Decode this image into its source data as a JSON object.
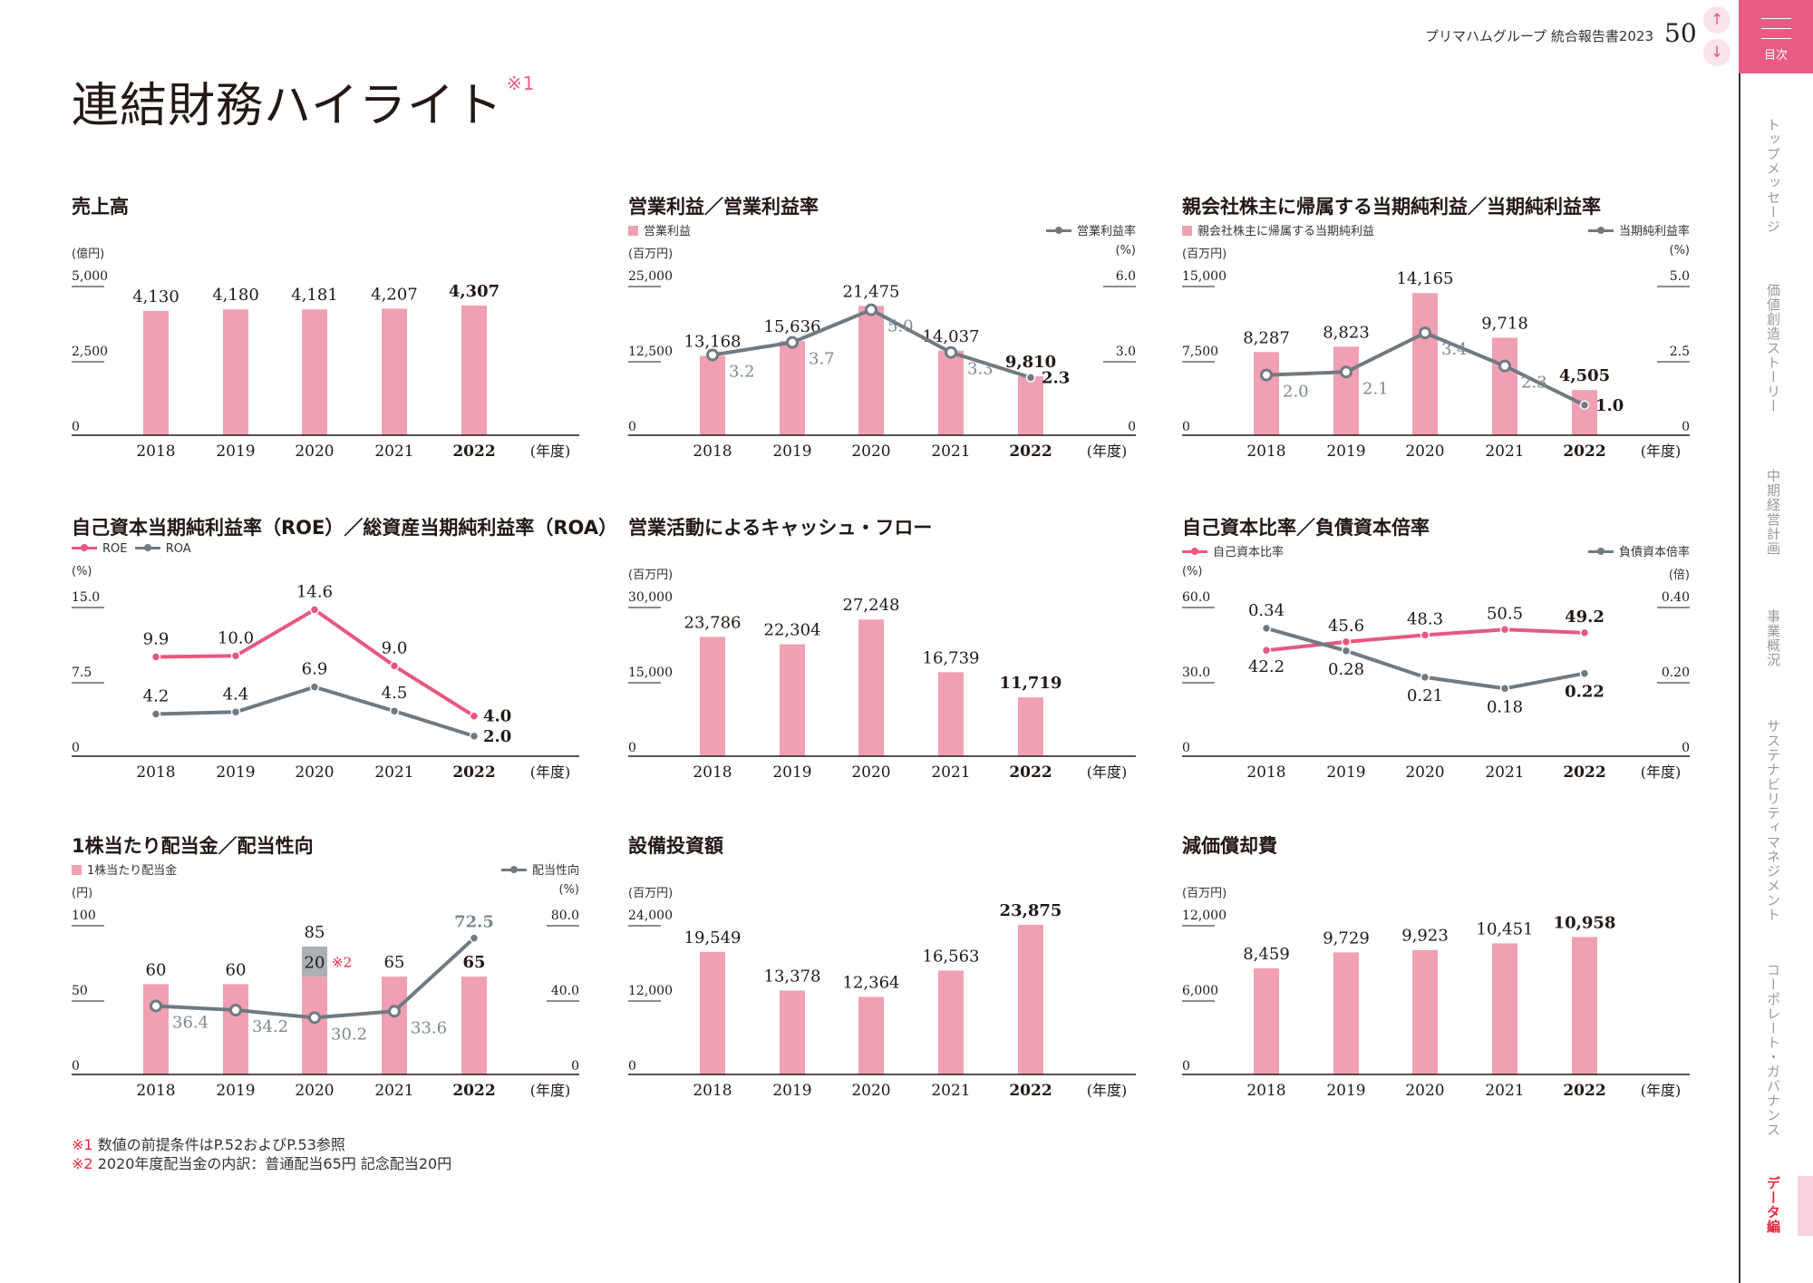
{
  "header": {
    "report_title": "プリマハムグループ 統合報告書2023",
    "page_number": "50",
    "up_icon": "arrow-up-icon",
    "down_icon": "arrow-down-icon",
    "toc_label": "目次"
  },
  "sidebar": {
    "items": [
      {
        "label": "トップメッセージ",
        "active": false
      },
      {
        "label": "価値創造ストーリー",
        "active": false
      },
      {
        "label": "中期経営計画",
        "active": false
      },
      {
        "label": "事業概況",
        "active": false
      },
      {
        "label": "サステナビリティマネジメント",
        "active": false
      },
      {
        "label": "コーポレート・ガバナンス",
        "active": false
      },
      {
        "label": "データ編",
        "active": true
      }
    ]
  },
  "page": {
    "title": "連結財務ハイライト",
    "title_note": "※1"
  },
  "colors": {
    "bar": "#f0a0b2",
    "line_gray": "#6f7a82",
    "line_pink": "#e8577f",
    "stack_gray": "#aab0b4",
    "accent": "#e85c84"
  },
  "footnotes": [
    {
      "mark": "※1",
      "text": "数値の前提条件はP.52およびP.53参照"
    },
    {
      "mark": "※2",
      "text": "2020年度配当金の内訳：普通配当65円 記念配当20円"
    }
  ],
  "chart_data": [
    {
      "type": "bar",
      "title": "売上高",
      "unit_left": "(億円)",
      "x_unit": "(年度)",
      "categories": [
        "2018",
        "2019",
        "2020",
        "2021",
        "2022"
      ],
      "left_axis": {
        "min": 0,
        "max": 5000,
        "ticks": [
          {
            "value": 0,
            "label": "0"
          },
          {
            "value": 2500,
            "label": "2,500"
          },
          {
            "value": 5000,
            "label": "5,000"
          }
        ]
      },
      "series": [
        {
          "kind": "bar",
          "values": [
            4130,
            4180,
            4181,
            4207,
            4307
          ],
          "labels": [
            "4,130",
            "4,180",
            "4,181",
            "4,207",
            "4,307"
          ]
        }
      ]
    },
    {
      "type": "bar+line",
      "title": "営業利益／営業利益率",
      "legend_left": "営業利益",
      "legend_right": "営業利益率",
      "unit_left": "(百万円)",
      "unit_right": "(%)",
      "x_unit": "(年度)",
      "categories": [
        "2018",
        "2019",
        "2020",
        "2021",
        "2022"
      ],
      "left_axis": {
        "min": 0,
        "max": 25000,
        "ticks": [
          {
            "value": 0,
            "label": "0"
          },
          {
            "value": 12500,
            "label": "12,500"
          },
          {
            "value": 25000,
            "label": "25,000"
          }
        ]
      },
      "right_axis": {
        "min": 0,
        "max": 6,
        "ticks": [
          {
            "value": 0,
            "label": "0"
          },
          {
            "value": 3,
            "label": "3.0"
          },
          {
            "value": 6,
            "label": "6.0"
          }
        ]
      },
      "series": [
        {
          "name": "営業利益",
          "kind": "bar",
          "values": [
            13168,
            15636,
            21475,
            14037,
            9810
          ],
          "labels": [
            "13,168",
            "15,636",
            "21,475",
            "14,037",
            "9,810"
          ]
        },
        {
          "name": "営業利益率",
          "kind": "line",
          "axis": "right",
          "color": "#6f7a82",
          "values": [
            3.2,
            3.7,
            5.0,
            3.3,
            2.3
          ],
          "labels": [
            "3.2",
            "3.7",
            "5.0",
            "3.3",
            "2.3"
          ]
        }
      ]
    },
    {
      "type": "bar+line",
      "title": "親会社株主に帰属する当期純利益／当期純利益率",
      "legend_left": "親会社株主に帰属する当期純利益",
      "legend_right": "当期純利益率",
      "unit_left": "(百万円)",
      "unit_right": "(%)",
      "x_unit": "(年度)",
      "categories": [
        "2018",
        "2019",
        "2020",
        "2021",
        "2022"
      ],
      "left_axis": {
        "min": 0,
        "max": 15000,
        "ticks": [
          {
            "value": 0,
            "label": "0"
          },
          {
            "value": 7500,
            "label": "7,500"
          },
          {
            "value": 15000,
            "label": "15,000"
          }
        ]
      },
      "right_axis": {
        "min": 0,
        "max": 5,
        "ticks": [
          {
            "value": 0,
            "label": "0"
          },
          {
            "value": 2.5,
            "label": "2.5"
          },
          {
            "value": 5,
            "label": "5.0"
          }
        ]
      },
      "series": [
        {
          "name": "親会社株主に帰属する当期純利益",
          "kind": "bar",
          "values": [
            8287,
            8823,
            14165,
            9718,
            4505
          ],
          "labels": [
            "8,287",
            "8,823",
            "14,165",
            "9,718",
            "4,505"
          ]
        },
        {
          "name": "当期純利益率",
          "kind": "line",
          "axis": "right",
          "color": "#6f7a82",
          "values": [
            2.0,
            2.1,
            3.4,
            2.3,
            1.0
          ],
          "labels": [
            "2.0",
            "2.1",
            "3.4",
            "2.3",
            "1.0"
          ]
        }
      ]
    },
    {
      "type": "line",
      "title": "自己資本当期純利益率（ROE）／総資産当期純利益率（ROA）",
      "unit_left": "(%)",
      "x_unit": "(年度)",
      "categories": [
        "2018",
        "2019",
        "2020",
        "2021",
        "2022"
      ],
      "left_axis": {
        "min": 0,
        "max": 15,
        "ticks": [
          {
            "value": 0,
            "label": "0"
          },
          {
            "value": 7.5,
            "label": "7.5"
          },
          {
            "value": 15,
            "label": "15.0"
          }
        ]
      },
      "series": [
        {
          "name": "ROE",
          "kind": "line",
          "axis": "left",
          "color": "#e8577f",
          "values": [
            9.9,
            10.0,
            14.6,
            9.0,
            4.0
          ],
          "labels": [
            "9.9",
            "10.0",
            "14.6",
            "9.0",
            "4.0"
          ]
        },
        {
          "name": "ROA",
          "kind": "line",
          "axis": "left",
          "color": "#6f7a82",
          "values": [
            4.2,
            4.4,
            6.9,
            4.5,
            2.0
          ],
          "labels": [
            "4.2",
            "4.4",
            "6.9",
            "4.5",
            "2.0"
          ]
        }
      ]
    },
    {
      "type": "bar",
      "title": "営業活動によるキャッシュ・フロー",
      "unit_left": "(百万円)",
      "x_unit": "(年度)",
      "categories": [
        "2018",
        "2019",
        "2020",
        "2021",
        "2022"
      ],
      "left_axis": {
        "min": 0,
        "max": 30000,
        "ticks": [
          {
            "value": 0,
            "label": "0"
          },
          {
            "value": 15000,
            "label": "15,000"
          },
          {
            "value": 30000,
            "label": "30,000"
          }
        ]
      },
      "series": [
        {
          "kind": "bar",
          "values": [
            23786,
            22304,
            27248,
            16739,
            11719
          ],
          "labels": [
            "23,786",
            "22,304",
            "27,248",
            "16,739",
            "11,719"
          ]
        }
      ]
    },
    {
      "type": "line",
      "title": "自己資本比率／負債資本倍率",
      "legend_left": "自己資本比率",
      "legend_right": "負債資本倍率",
      "unit_left": "(%)",
      "unit_right": "(倍)",
      "x_unit": "(年度)",
      "categories": [
        "2018",
        "2019",
        "2020",
        "2021",
        "2022"
      ],
      "left_axis": {
        "min": 0,
        "max": 60,
        "ticks": [
          {
            "value": 0,
            "label": "0"
          },
          {
            "value": 30,
            "label": "30.0"
          },
          {
            "value": 60,
            "label": "60.0"
          }
        ]
      },
      "right_axis": {
        "min": 0,
        "max": 0.4,
        "ticks": [
          {
            "value": 0,
            "label": "0"
          },
          {
            "value": 0.2,
            "label": "0.20"
          },
          {
            "value": 0.4,
            "label": "0.40"
          }
        ]
      },
      "series": [
        {
          "name": "自己資本比率",
          "kind": "line",
          "axis": "left",
          "color": "#e8577f",
          "values": [
            42.2,
            45.6,
            48.3,
            50.5,
            49.2
          ],
          "labels": [
            "42.2",
            "45.6",
            "48.3",
            "50.5",
            "49.2"
          ]
        },
        {
          "name": "負債資本倍率",
          "kind": "line",
          "axis": "right",
          "color": "#6f7a82",
          "values": [
            0.34,
            0.28,
            0.21,
            0.18,
            0.22
          ],
          "labels": [
            "0.34",
            "0.28",
            "0.21",
            "0.18",
            "0.22"
          ]
        }
      ]
    },
    {
      "type": "bar+line",
      "title": "1株当たり配当金／配当性向",
      "legend_left": "1株当たり配当金",
      "legend_right": "配当性向",
      "unit_left": "(円)",
      "unit_right": "(%)",
      "x_unit": "(年度)",
      "categories": [
        "2018",
        "2019",
        "2020",
        "2021",
        "2022"
      ],
      "left_axis": {
        "min": 0,
        "max": 100,
        "ticks": [
          {
            "value": 0,
            "label": "0"
          },
          {
            "value": 50,
            "label": "50"
          },
          {
            "value": 100,
            "label": "100"
          }
        ]
      },
      "right_axis": {
        "min": 0,
        "max": 80,
        "ticks": [
          {
            "value": 0,
            "label": "0"
          },
          {
            "value": 40,
            "label": "40.0"
          },
          {
            "value": 80,
            "label": "80.0"
          }
        ]
      },
      "series": [
        {
          "name": "1株当たり配当金",
          "kind": "bar",
          "values": [
            60,
            60,
            65,
            65,
            65
          ],
          "labels": [
            "60",
            "60",
            null,
            "65",
            "65"
          ]
        },
        {
          "name": "記念配当",
          "kind": "stack",
          "values": [
            0,
            0,
            20,
            0,
            0
          ],
          "labels": [
            null,
            null,
            "20",
            null,
            null
          ],
          "totals": [
            null,
            null,
            "85",
            null,
            null
          ],
          "note": "※2"
        },
        {
          "name": "配当性向",
          "kind": "line",
          "axis": "right",
          "color": "#6f7a82",
          "values": [
            36.4,
            34.2,
            30.2,
            33.6,
            72.5
          ],
          "labels": [
            "36.4",
            "34.2",
            "30.2",
            "33.6",
            "72.5"
          ]
        }
      ]
    },
    {
      "type": "bar",
      "title": "設備投資額",
      "unit_left": "(百万円)",
      "x_unit": "(年度)",
      "categories": [
        "2018",
        "2019",
        "2020",
        "2021",
        "2022"
      ],
      "left_axis": {
        "min": 0,
        "max": 24000,
        "ticks": [
          {
            "value": 0,
            "label": "0"
          },
          {
            "value": 12000,
            "label": "12,000"
          },
          {
            "value": 24000,
            "label": "24,000"
          }
        ]
      },
      "series": [
        {
          "kind": "bar",
          "values": [
            19549,
            13378,
            12364,
            16563,
            23875
          ],
          "labels": [
            "19,549",
            "13,378",
            "12,364",
            "16,563",
            "23,875"
          ]
        }
      ]
    },
    {
      "type": "bar",
      "title": "減価償却費",
      "unit_left": "(百万円)",
      "x_unit": "(年度)",
      "categories": [
        "2018",
        "2019",
        "2020",
        "2021",
        "2022"
      ],
      "left_axis": {
        "min": 0,
        "max": 12000,
        "ticks": [
          {
            "value": 0,
            "label": "0"
          },
          {
            "value": 6000,
            "label": "6,000"
          },
          {
            "value": 12000,
            "label": "12,000"
          }
        ]
      },
      "series": [
        {
          "kind": "bar",
          "values": [
            8459,
            9729,
            9923,
            10451,
            10958
          ],
          "labels": [
            "8,459",
            "9,729",
            "9,923",
            "10,451",
            "10,958"
          ]
        }
      ]
    }
  ]
}
